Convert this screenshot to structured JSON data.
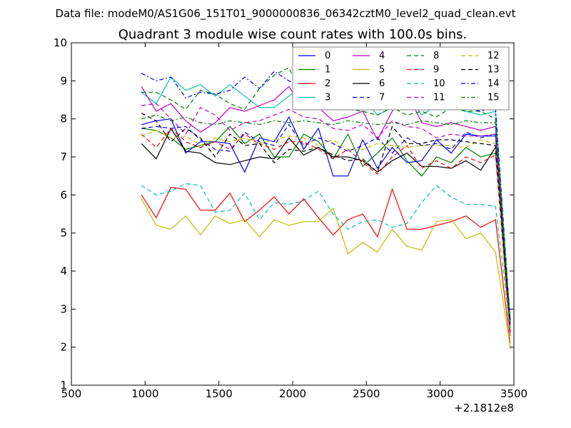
{
  "suptitle": "Data file: modeM0/AS1G06_151T01_9000000836_06342cztM0_level2_quad_clean.evt",
  "chart_data": {
    "type": "line",
    "title": "Quadrant 3 module wise count rates with 100.0s bins.",
    "xlabel": "",
    "ylabel": "",
    "x_offset_label": "+2.1812e8",
    "xlim": [
      500,
      3500
    ],
    "ylim": [
      1,
      10
    ],
    "xticks": [
      "500",
      "1000",
      "1500",
      "2000",
      "2500",
      "3000",
      "3500"
    ],
    "yticks": [
      "1",
      "2",
      "3",
      "4",
      "5",
      "6",
      "7",
      "8",
      "9",
      "10"
    ],
    "grid": false,
    "legend_position": "top-right",
    "legend_columns": 4,
    "x": [
      975,
      1075,
      1175,
      1275,
      1375,
      1475,
      1575,
      1675,
      1775,
      1875,
      1975,
      2075,
      2175,
      2275,
      2375,
      2475,
      2575,
      2675,
      2775,
      2875,
      2975,
      3075,
      3175,
      3275,
      3375,
      3475
    ],
    "series": [
      {
        "name": "0",
        "color": "#0000ff",
        "dash": "solid",
        "values": [
          7.85,
          7.95,
          8.0,
          7.1,
          7.4,
          7.4,
          7.35,
          6.6,
          7.5,
          7.4,
          8.05,
          7.2,
          7.75,
          6.5,
          6.5,
          7.45,
          6.7,
          7.25,
          6.85,
          6.9,
          7.45,
          7.1,
          7.6,
          7.55,
          7.55,
          2.7
        ]
      },
      {
        "name": "1",
        "color": "#008000",
        "dash": "solid",
        "values": [
          7.75,
          7.7,
          7.5,
          7.2,
          7.3,
          7.4,
          7.8,
          7.35,
          7.6,
          7.0,
          7.0,
          7.6,
          7.4,
          6.95,
          7.6,
          6.75,
          7.1,
          7.5,
          6.9,
          6.5,
          7.0,
          6.85,
          7.25,
          7.0,
          7.1,
          2.75
        ]
      },
      {
        "name": "2",
        "color": "#ff0000",
        "dash": "solid",
        "values": [
          6.0,
          5.4,
          6.2,
          6.15,
          5.6,
          5.6,
          6.05,
          5.3,
          5.6,
          5.95,
          5.5,
          5.9,
          5.4,
          4.95,
          5.35,
          5.5,
          4.9,
          6.15,
          5.1,
          5.1,
          5.2,
          5.3,
          5.45,
          5.15,
          5.35,
          2.1
        ]
      },
      {
        "name": "3",
        "color": "#00bfbf",
        "dash": "solid",
        "values": [
          8.7,
          8.4,
          9.1,
          8.75,
          8.9,
          8.6,
          8.9,
          8.6,
          8.3,
          8.3,
          8.6,
          8.9,
          8.6,
          8.4,
          8.3,
          8.55,
          8.1,
          8.3,
          8.7,
          8.1,
          8.35,
          8.3,
          8.2,
          8.1,
          8.2,
          2.6
        ]
      },
      {
        "name": "4",
        "color": "#bf00bf",
        "dash": "solid",
        "values": [
          8.85,
          8.2,
          8.4,
          7.95,
          7.65,
          7.9,
          8.3,
          8.2,
          8.35,
          8.5,
          8.85,
          8.25,
          8.3,
          7.95,
          8.05,
          8.2,
          7.45,
          8.2,
          8.7,
          7.9,
          7.8,
          7.9,
          7.8,
          7.7,
          7.8,
          2.35
        ]
      },
      {
        "name": "5",
        "color": "#bfbf00",
        "dash": "solid",
        "values": [
          5.9,
          5.2,
          5.1,
          5.45,
          4.95,
          5.45,
          5.25,
          5.35,
          4.9,
          5.35,
          5.2,
          5.3,
          5.3,
          5.65,
          4.45,
          4.75,
          4.5,
          5.1,
          4.65,
          4.55,
          5.3,
          5.35,
          4.85,
          5.0,
          4.5,
          2.0
        ]
      },
      {
        "name": "6",
        "color": "#000000",
        "dash": "solid",
        "values": [
          7.35,
          6.95,
          7.75,
          7.15,
          7.1,
          6.85,
          6.8,
          6.9,
          7.0,
          6.95,
          7.5,
          7.05,
          7.25,
          7.0,
          7.0,
          6.9,
          6.6,
          6.9,
          7.1,
          6.75,
          6.75,
          6.7,
          6.9,
          6.65,
          7.25,
          2.4
        ]
      },
      {
        "name": "7",
        "color": "#0000ff",
        "dash": "dashed",
        "values": [
          7.75,
          7.8,
          7.75,
          7.8,
          7.45,
          7.2,
          7.15,
          7.65,
          7.4,
          7.3,
          7.85,
          7.3,
          7.5,
          7.35,
          7.15,
          7.3,
          7.5,
          7.1,
          7.5,
          7.3,
          7.35,
          7.2,
          7.65,
          7.5,
          7.6,
          2.65
        ]
      },
      {
        "name": "8",
        "color": "#008000",
        "dash": "dashed",
        "values": [
          8.7,
          8.7,
          8.5,
          8.25,
          8.75,
          8.65,
          8.4,
          8.25,
          8.8,
          9.15,
          9.35,
          8.45,
          8.6,
          8.3,
          8.25,
          8.2,
          8.1,
          8.3,
          8.1,
          8.2,
          8.05,
          8.3,
          8.2,
          8.2,
          8.0,
          2.5
        ]
      },
      {
        "name": "9",
        "color": "#ff0000",
        "dash": "dashed",
        "values": [
          7.6,
          7.25,
          7.75,
          7.4,
          7.25,
          7.4,
          7.2,
          7.6,
          7.35,
          7.2,
          7.4,
          7.4,
          7.2,
          6.95,
          7.2,
          6.85,
          6.55,
          7.0,
          7.3,
          6.7,
          6.9,
          6.7,
          7.0,
          6.85,
          7.05,
          2.3
        ]
      },
      {
        "name": "10",
        "color": "#00bfbf",
        "dash": "dashed",
        "values": [
          6.25,
          6.0,
          6.1,
          6.3,
          6.25,
          5.55,
          5.6,
          6.05,
          5.35,
          5.8,
          5.75,
          5.85,
          6.1,
          5.5,
          5.1,
          5.3,
          5.35,
          5.15,
          5.25,
          5.8,
          6.25,
          5.95,
          5.75,
          5.75,
          5.7,
          2.5
        ]
      },
      {
        "name": "11",
        "color": "#bf00bf",
        "dash": "dashed",
        "values": [
          8.35,
          8.4,
          8.0,
          7.6,
          8.3,
          8.1,
          7.7,
          7.9,
          7.95,
          8.1,
          8.25,
          8.05,
          8.0,
          7.75,
          7.7,
          7.85,
          7.5,
          7.95,
          7.8,
          7.75,
          7.5,
          7.6,
          7.55,
          7.55,
          7.6,
          2.4
        ]
      },
      {
        "name": "12",
        "color": "#bfbf00",
        "dash": "dashed",
        "values": [
          7.55,
          7.7,
          7.5,
          7.55,
          7.3,
          7.5,
          7.4,
          7.5,
          7.35,
          7.45,
          7.55,
          7.5,
          7.3,
          7.45,
          7.2,
          7.2,
          7.35,
          7.3,
          7.25,
          7.3,
          7.3,
          7.3,
          7.25,
          7.45,
          7.35,
          1.95
        ]
      },
      {
        "name": "13",
        "color": "#000000",
        "dash": "dashed",
        "values": [
          8.15,
          7.95,
          7.4,
          7.75,
          7.5,
          7.0,
          7.6,
          7.3,
          7.35,
          6.85,
          7.2,
          7.15,
          7.25,
          7.05,
          6.9,
          6.95,
          6.6,
          7.8,
          7.35,
          7.35,
          7.45,
          7.45,
          7.4,
          7.35,
          7.3,
          2.6
        ]
      },
      {
        "name": "14",
        "color": "#0000ff",
        "dash": "dashdot",
        "values": [
          9.2,
          9.0,
          9.1,
          8.55,
          8.7,
          8.65,
          8.75,
          9.1,
          8.8,
          9.25,
          9.0,
          8.8,
          8.55,
          8.45,
          8.55,
          8.5,
          8.35,
          8.5,
          8.3,
          8.3,
          8.35,
          8.35,
          8.3,
          8.2,
          8.3,
          2.7
        ]
      },
      {
        "name": "15",
        "color": "#008000",
        "dash": "dashdot",
        "values": [
          8.0,
          8.1,
          7.95,
          8.05,
          7.9,
          7.85,
          7.95,
          7.9,
          7.85,
          7.95,
          7.9,
          7.95,
          7.9,
          7.85,
          7.95,
          7.9,
          7.85,
          7.9,
          7.85,
          7.95,
          7.9,
          7.85,
          7.95,
          7.9,
          7.9,
          2.75
        ]
      }
    ]
  }
}
